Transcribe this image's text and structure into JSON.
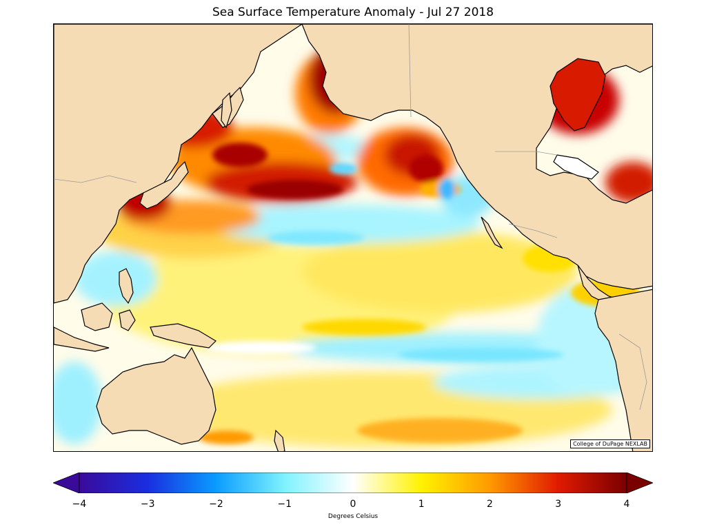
{
  "title": "Sea Surface Temperature Anomaly - Jul 27 2018",
  "credit": "College of DuPage NEXLAB",
  "colorbar": {
    "label": "Degrees Celsius",
    "min": -4,
    "max": 4,
    "ticks": [
      {
        "value": -4,
        "label": "−4"
      },
      {
        "value": -3,
        "label": "−3"
      },
      {
        "value": -2,
        "label": "−2"
      },
      {
        "value": -1,
        "label": "−1"
      },
      {
        "value": 0,
        "label": "0"
      },
      {
        "value": 1,
        "label": "1"
      },
      {
        "value": 2,
        "label": "2"
      },
      {
        "value": 3,
        "label": "3"
      },
      {
        "value": 4,
        "label": "4"
      }
    ],
    "extend": "both",
    "colors": [
      "#3a0a9a",
      "#1a2ee0",
      "#0a9cff",
      "#7ff2ff",
      "#ffffff",
      "#fff200",
      "#ff9a00",
      "#e01a00",
      "#7a0000"
    ]
  },
  "map": {
    "projection": "mercator",
    "region": "Pacific Ocean",
    "land_color": "#f5dcb4",
    "ocean_base": "#fffbe8"
  }
}
